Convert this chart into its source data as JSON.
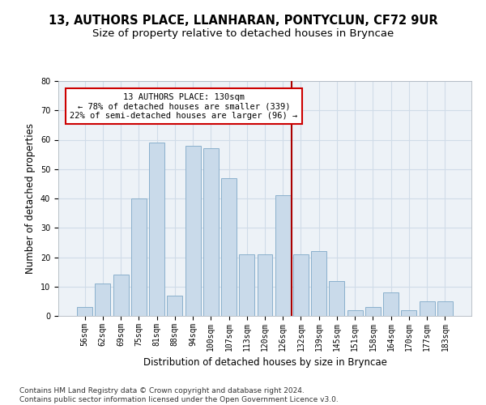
{
  "title1": "13, AUTHORS PLACE, LLANHARAN, PONTYCLUN, CF72 9UR",
  "title2": "Size of property relative to detached houses in Bryncae",
  "xlabel": "Distribution of detached houses by size in Bryncae",
  "ylabel": "Number of detached properties",
  "categories": [
    "56sqm",
    "62sqm",
    "69sqm",
    "75sqm",
    "81sqm",
    "88sqm",
    "94sqm",
    "100sqm",
    "107sqm",
    "113sqm",
    "120sqm",
    "126sqm",
    "132sqm",
    "139sqm",
    "145sqm",
    "151sqm",
    "158sqm",
    "164sqm",
    "170sqm",
    "177sqm",
    "183sqm"
  ],
  "values": [
    3,
    11,
    14,
    40,
    59,
    7,
    58,
    57,
    47,
    21,
    21,
    41,
    21,
    22,
    12,
    2,
    3,
    8,
    2,
    5,
    5
  ],
  "bar_color": "#c9daea",
  "bar_edge_color": "#8ab0cc",
  "vline_color": "#aa0000",
  "annotation_text": "13 AUTHORS PLACE: 130sqm\n← 78% of detached houses are smaller (339)\n22% of semi-detached houses are larger (96) →",
  "annotation_box_color": "#ffffff",
  "annotation_box_edge_color": "#cc0000",
  "ylim": [
    0,
    80
  ],
  "yticks": [
    0,
    10,
    20,
    30,
    40,
    50,
    60,
    70,
    80
  ],
  "grid_color": "#d0dce8",
  "background_color": "#edf2f7",
  "footnote": "Contains HM Land Registry data © Crown copyright and database right 2024.\nContains public sector information licensed under the Open Government Licence v3.0.",
  "title1_fontsize": 10.5,
  "title2_fontsize": 9.5,
  "xlabel_fontsize": 8.5,
  "ylabel_fontsize": 8.5,
  "tick_fontsize": 7,
  "footnote_fontsize": 6.5,
  "annotation_fontsize": 7.5
}
